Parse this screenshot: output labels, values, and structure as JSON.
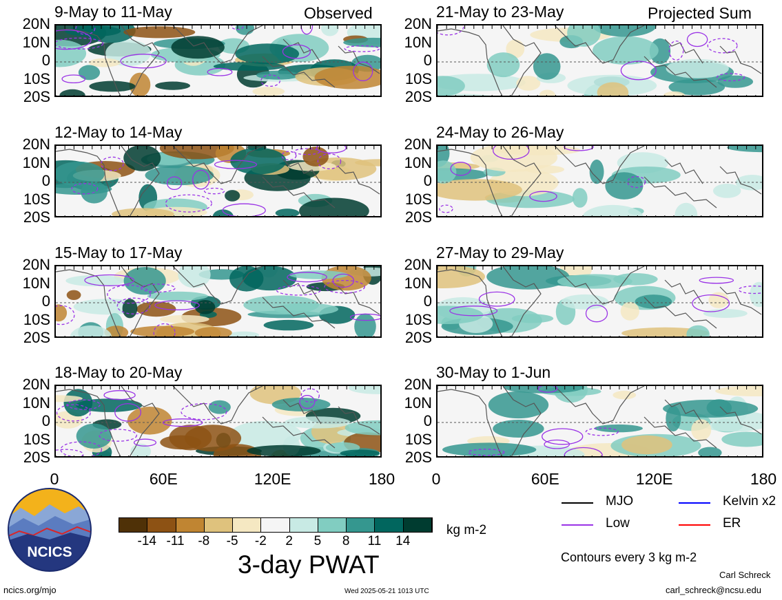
{
  "panel_labels": {
    "observed": "Observed",
    "projected": "Projected Sum"
  },
  "panels": [
    {
      "id": "p1",
      "title": "9-May to 11-May",
      "col": 0,
      "row": 0
    },
    {
      "id": "p2",
      "title": "12-May to 14-May",
      "col": 0,
      "row": 1
    },
    {
      "id": "p3",
      "title": "15-May to 17-May",
      "col": 0,
      "row": 2
    },
    {
      "id": "p4",
      "title": "18-May to 20-May",
      "col": 0,
      "row": 3
    },
    {
      "id": "p5",
      "title": "21-May to 23-May",
      "col": 1,
      "row": 0
    },
    {
      "id": "p6",
      "title": "24-May to 26-May",
      "col": 1,
      "row": 1
    },
    {
      "id": "p7",
      "title": "27-May to 29-May",
      "col": 1,
      "row": 2
    },
    {
      "id": "p8",
      "title": "30-May to 1-Jun",
      "col": 1,
      "row": 3
    }
  ],
  "y_ticks": [
    "20N",
    "10N",
    "0",
    "10S",
    "20S"
  ],
  "x_ticks": [
    "0",
    "60E",
    "120E",
    "180"
  ],
  "colorbar": {
    "colors": [
      "#4f3107",
      "#8d5214",
      "#c08532",
      "#dfc27d",
      "#f5e8c2",
      "#f5f5f5",
      "#c8eae4",
      "#81cdc1",
      "#35978f",
      "#01665e",
      "#003c30"
    ],
    "labels": [
      "-14",
      "-11",
      "-8",
      "-5",
      "-2",
      "2",
      "5",
      "8",
      "11",
      "14"
    ],
    "units": "kg m-2",
    "title": "3-day PWAT"
  },
  "legend": {
    "items": [
      {
        "label": "MJO",
        "color": "#000000"
      },
      {
        "label": "Kelvin x2",
        "color": "#0000ff"
      },
      {
        "label": "Low",
        "color": "#9a32e6"
      },
      {
        "label": "ER",
        "color": "#ff0000"
      }
    ],
    "contours_note": "Contours every 3 kg m-2"
  },
  "logo": {
    "text": "NCICS"
  },
  "footer": {
    "left_url": "ncics.org/mjo",
    "timestamp": "Wed 2025-05-21 1013 UTC",
    "author": "Carl Schreck",
    "email": "carl_schreck@ncsu.edu"
  }
}
